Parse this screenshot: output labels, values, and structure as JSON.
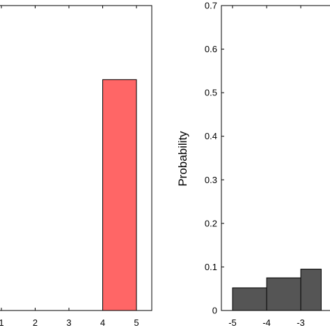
{
  "chart_data": [
    {
      "type": "bar",
      "title": "",
      "xlabel": "",
      "ylabel": "",
      "x_ticks": [
        "1",
        "2",
        "3",
        "4",
        "5"
      ],
      "xlim": [
        1,
        5
      ],
      "ylim": [
        0,
        0.7
      ],
      "bar_color": "#ff6666",
      "bars": [
        {
          "x0": 4,
          "x1": 5,
          "value": 0.53
        }
      ]
    },
    {
      "type": "bar",
      "title": "",
      "xlabel": "",
      "ylabel": "Probability",
      "y_ticks": [
        "0",
        "0.1",
        "0.2",
        "0.3",
        "0.4",
        "0.5",
        "0.6",
        "0.7"
      ],
      "x_ticks": [
        "-5",
        "-4",
        "-3"
      ],
      "ylim": [
        0,
        0.7
      ],
      "bar_color": "#555555",
      "bars": [
        {
          "x0": -5.0,
          "x1": -4.0,
          "value": 0.052
        },
        {
          "x0": -4.0,
          "x1": -3.0,
          "value": 0.075
        },
        {
          "x0": -3.0,
          "x1": -2.4,
          "value": 0.095
        }
      ]
    }
  ]
}
